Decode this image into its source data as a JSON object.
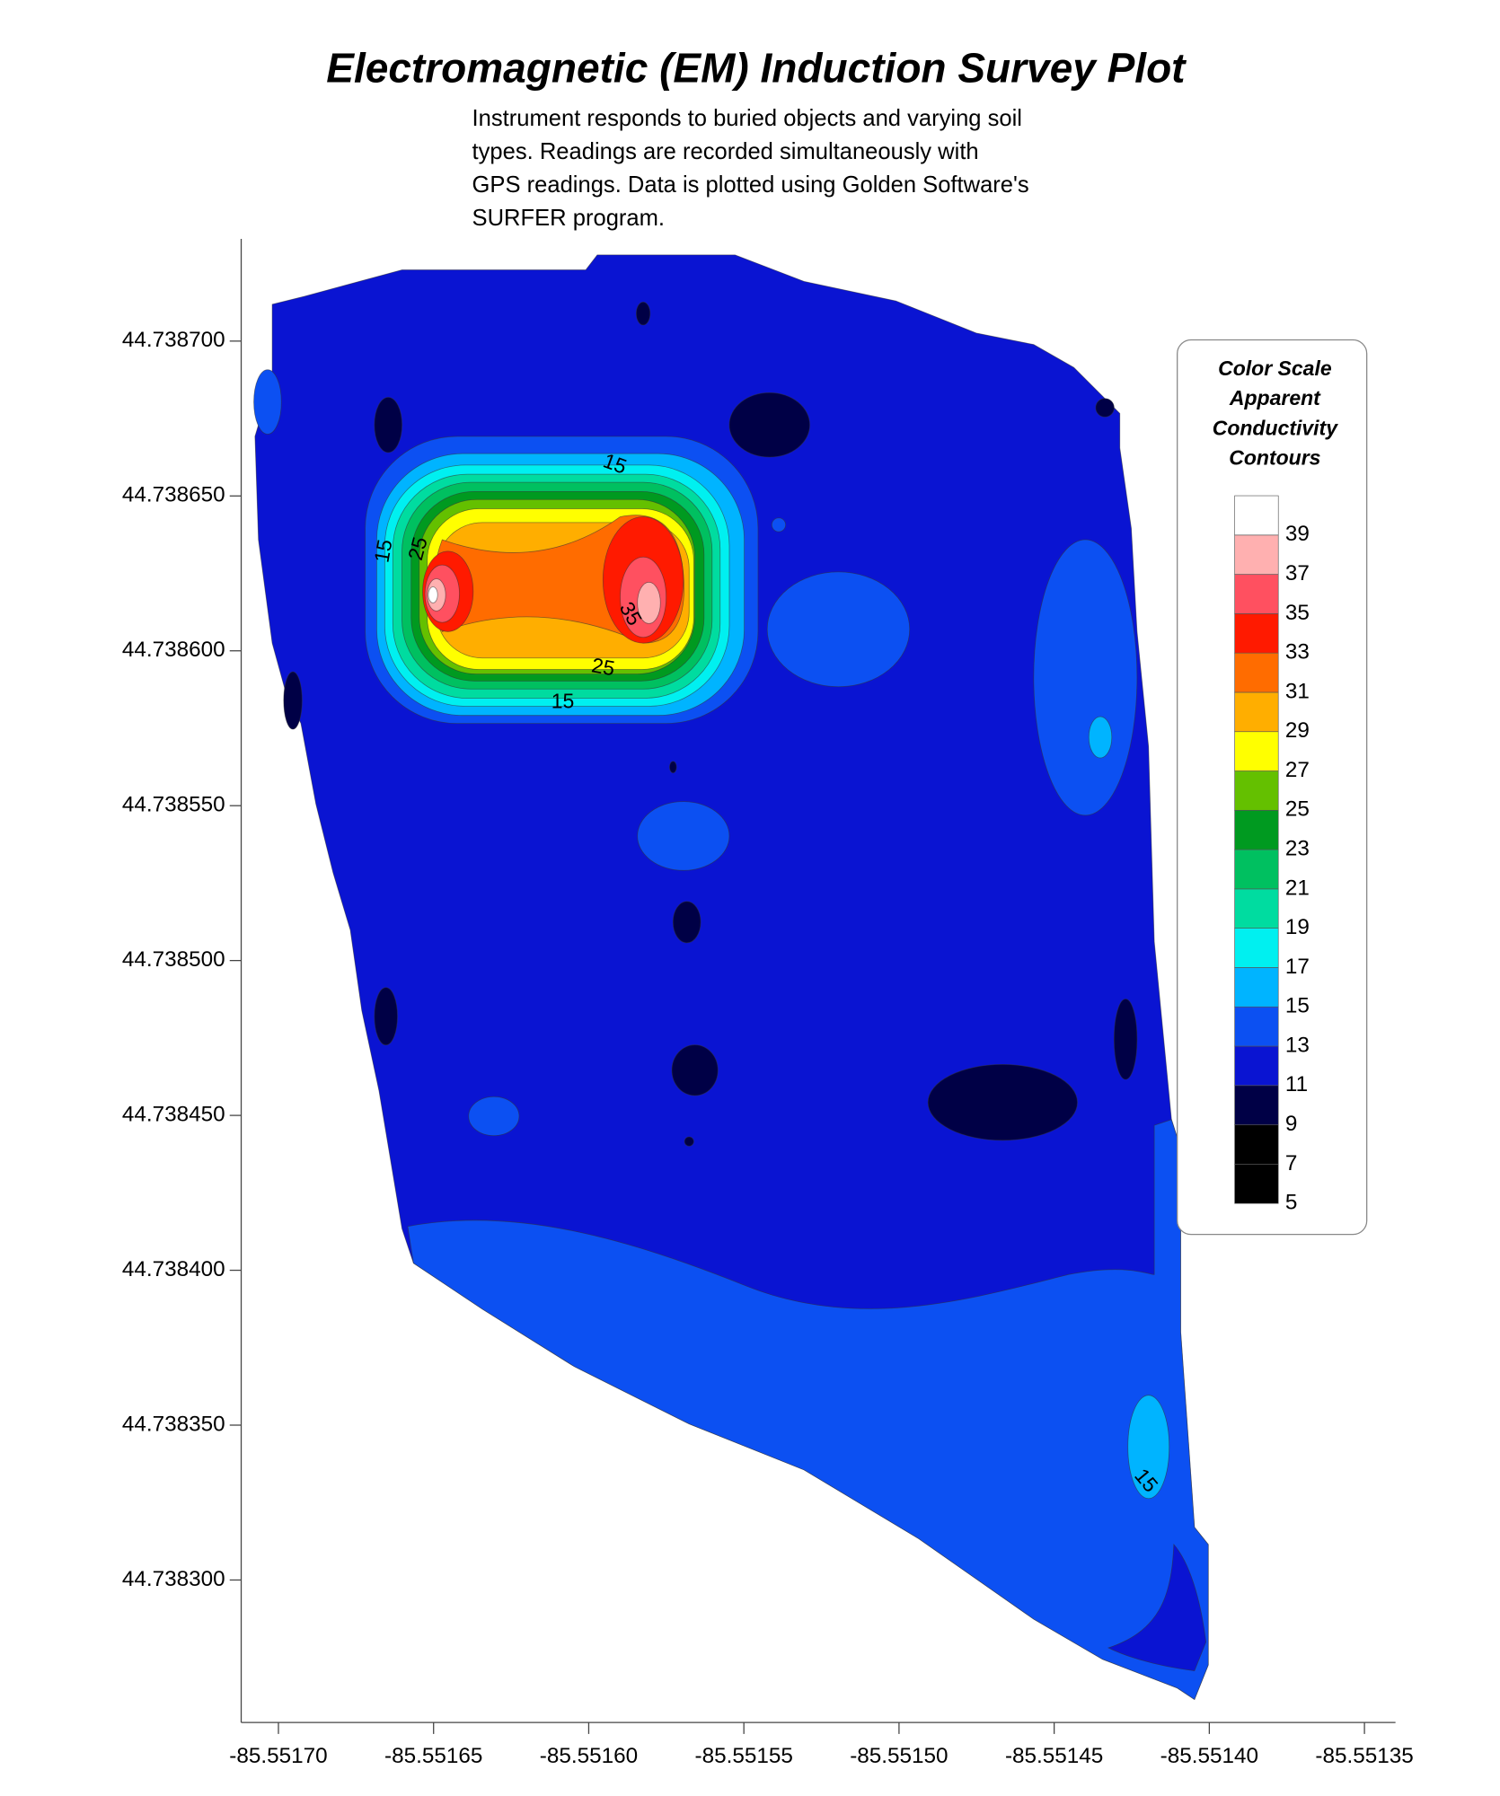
{
  "chart_data": {
    "type": "contour",
    "title": "Electromagnetic (EM) Induction Survey Plot",
    "subtitle": [
      "Instrument responds to buried objects and varying soil",
      "types. Readings are recorded simultaneously with",
      "GPS readings. Data is plotted using Golden Software's",
      "SURFER program."
    ],
    "xlim": [
      -85.551712,
      -85.55134
    ],
    "ylim": [
      44.738254,
      44.738733
    ],
    "xticks": [
      {
        "value": -85.5517,
        "label": "-85.55170"
      },
      {
        "value": -85.55165,
        "label": "-85.55165"
      },
      {
        "value": -85.5516,
        "label": "-85.55160"
      },
      {
        "value": -85.55155,
        "label": "-85.55155"
      },
      {
        "value": -85.5515,
        "label": "-85.55150"
      },
      {
        "value": -85.55145,
        "label": "-85.55145"
      },
      {
        "value": -85.5514,
        "label": "-85.55140"
      },
      {
        "value": -85.55135,
        "label": "-85.55135"
      }
    ],
    "yticks": [
      {
        "value": 44.7387,
        "label": "44.738700"
      },
      {
        "value": 44.73865,
        "label": "44.738650"
      },
      {
        "value": 44.7386,
        "label": "44.738600"
      },
      {
        "value": 44.73855,
        "label": "44.738550"
      },
      {
        "value": 44.7385,
        "label": "44.738500"
      },
      {
        "value": 44.73845,
        "label": "44.738450"
      },
      {
        "value": 44.7384,
        "label": "44.738400"
      },
      {
        "value": 44.73835,
        "label": "44.738350"
      },
      {
        "value": 44.7383,
        "label": "44.738300"
      }
    ],
    "legend_title": [
      "Color Scale",
      "Apparent",
      "Conductivity",
      "Contours"
    ],
    "levels": [
      5,
      7,
      9,
      11,
      13,
      15,
      17,
      19,
      21,
      23,
      25,
      27,
      29,
      31,
      33,
      35,
      37,
      39
    ],
    "colors": [
      "#000000",
      "#000000",
      "#000046",
      "#0a14d2",
      "#0c50f2",
      "#00b4ff",
      "#00f0f0",
      "#00dca0",
      "#00c060",
      "#009a20",
      "#64c000",
      "#ffff00",
      "#ffae00",
      "#ff6c00",
      "#ff1a00",
      "#ff5060",
      "#ffb0b0",
      "#ffffff"
    ],
    "contour_labels": [
      15,
      15,
      25,
      25,
      35,
      15,
      15
    ]
  }
}
